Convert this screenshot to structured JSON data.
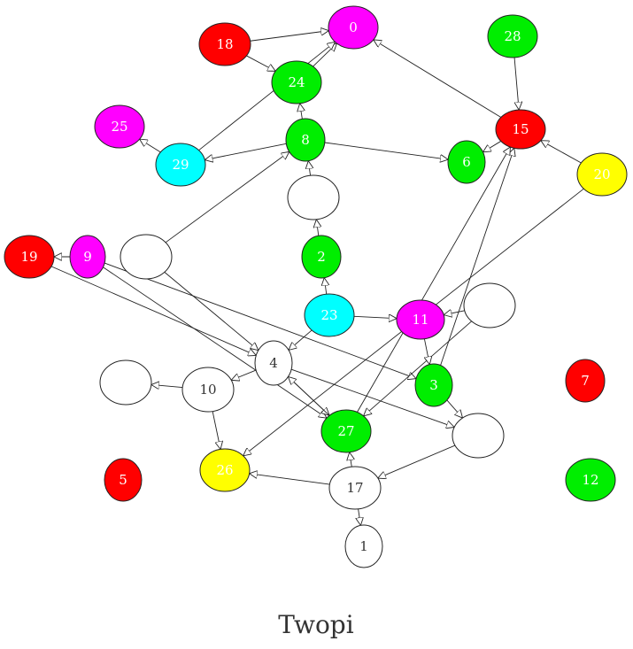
{
  "title": "Twopi",
  "colors": {
    "red": "#ff0000",
    "green": "#00ee00",
    "magenta": "#ff00ff",
    "cyan": "#00ffff",
    "yellow": "#ffff00",
    "white": "#ffffff"
  },
  "nodes": [
    {
      "id": "n0",
      "label": "0",
      "color": "magenta"
    },
    {
      "id": "n18",
      "label": "18",
      "color": "red"
    },
    {
      "id": "n28",
      "label": "28",
      "color": "green"
    },
    {
      "id": "n24",
      "label": "24",
      "color": "green"
    },
    {
      "id": "n25",
      "label": "25",
      "color": "magenta"
    },
    {
      "id": "n8",
      "label": "8",
      "color": "green"
    },
    {
      "id": "n15",
      "label": "15",
      "color": "red"
    },
    {
      "id": "n29",
      "label": "29",
      "color": "cyan"
    },
    {
      "id": "n6",
      "label": "6",
      "color": "green"
    },
    {
      "id": "n20",
      "label": "20",
      "color": "yellow"
    },
    {
      "id": "nA",
      "label": "",
      "color": "white"
    },
    {
      "id": "n19",
      "label": "19",
      "color": "red"
    },
    {
      "id": "n9",
      "label": "9",
      "color": "magenta"
    },
    {
      "id": "nB",
      "label": "",
      "color": "white"
    },
    {
      "id": "n2",
      "label": "2",
      "color": "green"
    },
    {
      "id": "n23",
      "label": "23",
      "color": "cyan"
    },
    {
      "id": "n11",
      "label": "11",
      "color": "magenta"
    },
    {
      "id": "nC",
      "label": "",
      "color": "white"
    },
    {
      "id": "n4",
      "label": "4",
      "color": "white"
    },
    {
      "id": "nD",
      "label": "",
      "color": "white"
    },
    {
      "id": "n10",
      "label": "10",
      "color": "white"
    },
    {
      "id": "n3",
      "label": "3",
      "color": "green"
    },
    {
      "id": "n7",
      "label": "7",
      "color": "red"
    },
    {
      "id": "n27",
      "label": "27",
      "color": "green"
    },
    {
      "id": "nE",
      "label": "",
      "color": "white"
    },
    {
      "id": "n5",
      "label": "5",
      "color": "red"
    },
    {
      "id": "n26",
      "label": "26",
      "color": "yellow"
    },
    {
      "id": "n17",
      "label": "17",
      "color": "white"
    },
    {
      "id": "n12",
      "label": "12",
      "color": "green"
    },
    {
      "id": "n1",
      "label": "1",
      "color": "white"
    }
  ],
  "edges": [
    [
      "n18",
      "n0"
    ],
    [
      "n18",
      "n24"
    ],
    [
      "n24",
      "n0"
    ],
    [
      "n29",
      "n0"
    ],
    [
      "n8",
      "n24"
    ],
    [
      "n8",
      "n29"
    ],
    [
      "n8",
      "n6"
    ],
    [
      "n29",
      "n25"
    ],
    [
      "n28",
      "n15"
    ],
    [
      "n15",
      "n6"
    ],
    [
      "n15",
      "n0"
    ],
    [
      "n20",
      "n15"
    ],
    [
      "n20",
      "n26"
    ],
    [
      "nA",
      "n8"
    ],
    [
      "n2",
      "nA"
    ],
    [
      "n23",
      "n2"
    ],
    [
      "n23",
      "n11"
    ],
    [
      "n23",
      "n4"
    ],
    [
      "nB",
      "n8"
    ],
    [
      "nB",
      "n4"
    ],
    [
      "n9",
      "n19"
    ],
    [
      "n9",
      "n3"
    ],
    [
      "n9",
      "n27"
    ],
    [
      "n19",
      "n4"
    ],
    [
      "nC",
      "n11"
    ],
    [
      "nC",
      "n27"
    ],
    [
      "n11",
      "n3"
    ],
    [
      "n3",
      "n15"
    ],
    [
      "n3",
      "nE"
    ],
    [
      "n4",
      "n10"
    ],
    [
      "n4",
      "n27"
    ],
    [
      "n4",
      "nE"
    ],
    [
      "n10",
      "nD"
    ],
    [
      "n10",
      "n26"
    ],
    [
      "n27",
      "n15"
    ],
    [
      "n27",
      "n4"
    ],
    [
      "nE",
      "n17"
    ],
    [
      "n17",
      "n27"
    ],
    [
      "n17",
      "n26"
    ],
    [
      "n17",
      "n1"
    ]
  ]
}
